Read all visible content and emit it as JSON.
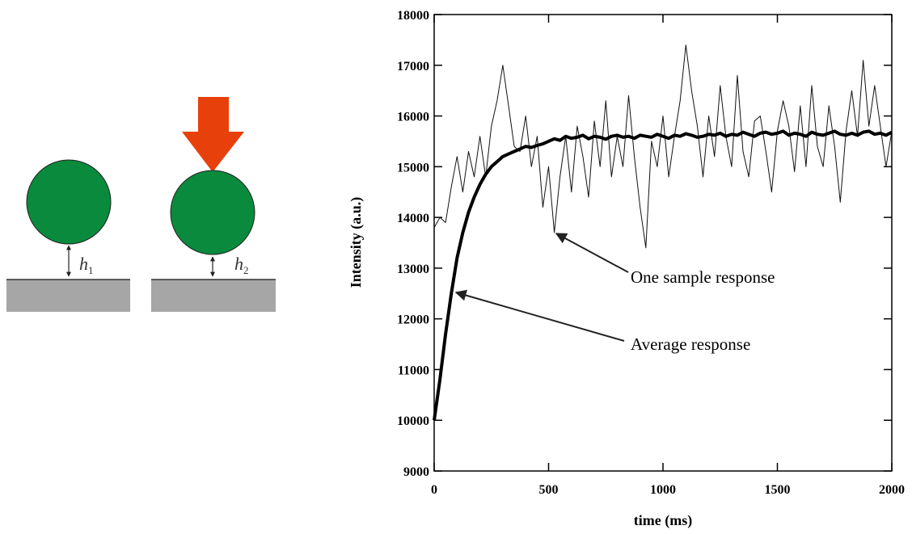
{
  "diagram": {
    "h1": {
      "symbol": "h",
      "subscript": "1"
    },
    "h2": {
      "symbol": "h",
      "subscript": "2"
    }
  },
  "chart_data": {
    "type": "line",
    "x_label": "time (ms)",
    "y_label": "Intensity (a.u.)",
    "xlim": [
      0,
      2000
    ],
    "xticks": [
      0,
      500,
      1000,
      1500,
      2000
    ],
    "ylim": [
      9000,
      18000
    ],
    "yticks": [
      9000,
      10000,
      11000,
      12000,
      13000,
      14000,
      15000,
      16000,
      17000,
      18000
    ],
    "x": [
      0,
      25,
      50,
      75,
      100,
      125,
      150,
      175,
      200,
      225,
      250,
      275,
      300,
      325,
      350,
      375,
      400,
      425,
      450,
      475,
      500,
      525,
      550,
      575,
      600,
      625,
      650,
      675,
      700,
      725,
      750,
      775,
      800,
      825,
      850,
      875,
      900,
      925,
      950,
      975,
      1000,
      1025,
      1050,
      1075,
      1100,
      1125,
      1150,
      1175,
      1200,
      1225,
      1250,
      1275,
      1300,
      1325,
      1350,
      1375,
      1400,
      1425,
      1450,
      1475,
      1500,
      1525,
      1550,
      1575,
      1600,
      1625,
      1650,
      1675,
      1700,
      1725,
      1750,
      1775,
      1800,
      1825,
      1850,
      1875,
      1900,
      1925,
      1950,
      1975,
      2000
    ],
    "series": [
      {
        "name": "One sample response",
        "color": "#111111",
        "values": [
          13800,
          14000,
          13900,
          14600,
          15200,
          14500,
          15300,
          14800,
          15600,
          14800,
          15800,
          16300,
          17000,
          16200,
          15400,
          15300,
          16000,
          15000,
          15600,
          14200,
          15000,
          13700,
          14800,
          15600,
          14500,
          15800,
          15200,
          14400,
          15900,
          15000,
          16300,
          14800,
          15600,
          15000,
          16400,
          15200,
          14200,
          13400,
          15500,
          15000,
          16000,
          14800,
          15600,
          16300,
          17400,
          16500,
          15800,
          14800,
          16000,
          15200,
          16600,
          15600,
          15000,
          16800,
          15300,
          14800,
          15900,
          16000,
          15300,
          14500,
          15700,
          16300,
          15800,
          14900,
          16200,
          15000,
          16600,
          15400,
          15000,
          16200,
          15400,
          14300,
          15700,
          16500,
          15600,
          17100,
          15800,
          16600,
          15800,
          15000,
          15700
        ]
      },
      {
        "name": "Average response",
        "color": "#000000",
        "values": [
          10000,
          10800,
          11700,
          12500,
          13200,
          13700,
          14100,
          14400,
          14650,
          14850,
          15000,
          15100,
          15200,
          15250,
          15300,
          15350,
          15400,
          15380,
          15420,
          15450,
          15500,
          15550,
          15520,
          15600,
          15560,
          15580,
          15620,
          15550,
          15600,
          15580,
          15540,
          15600,
          15620,
          15580,
          15600,
          15560,
          15620,
          15600,
          15580,
          15640,
          15600,
          15560,
          15620,
          15600,
          15650,
          15620,
          15580,
          15600,
          15640,
          15620,
          15660,
          15600,
          15640,
          15620,
          15680,
          15640,
          15600,
          15660,
          15680,
          15640,
          15660,
          15700,
          15620,
          15660,
          15640,
          15600,
          15680,
          15640,
          15620,
          15660,
          15700,
          15640,
          15620,
          15660,
          15620,
          15680,
          15700,
          15640,
          15660,
          15620,
          15680
        ]
      }
    ]
  }
}
